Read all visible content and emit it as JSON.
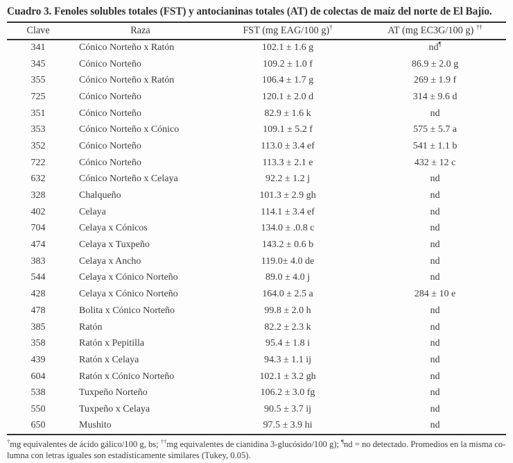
{
  "page": {
    "title": "Cuadro 3. Fenoles solubles totales (FST) y antocianinas totales (AT) de colectas de maíz del norte de El Bajío."
  },
  "table": {
    "columns": [
      {
        "label": "Clave",
        "sup": ""
      },
      {
        "label": "Raza",
        "sup": ""
      },
      {
        "label": "FST (mg EAG/100 g)",
        "sup": "†"
      },
      {
        "label": "AT (mg EC3G/100 g) ",
        "sup": "††"
      }
    ],
    "rows": [
      {
        "clave": "341",
        "raza": "Cónico Norteño x Ratón",
        "fst": "102.1 ± 1.6 g",
        "at": "nd",
        "at_sup": "¶"
      },
      {
        "clave": "345",
        "raza": "Cónico Norteño",
        "fst": "109.2 ± 1.0 f",
        "at": "86.9 ± 2.0 g",
        "at_sup": ""
      },
      {
        "clave": "355",
        "raza": "Cónico Norteño x Ratón",
        "fst": "106.4 ± 1.7 g",
        "at": "269 ± 1.9 f",
        "at_sup": ""
      },
      {
        "clave": "725",
        "raza": "Cónico Norteño",
        "fst": "120.1 ± 2.0 d",
        "at": "314 ± 9.6 d",
        "at_sup": ""
      },
      {
        "clave": "351",
        "raza": "Cónico Norteño",
        "fst": "82.9 ± 1.6 k",
        "at": "nd",
        "at_sup": ""
      },
      {
        "clave": "353",
        "raza": "Cónico Norteño x Cónico",
        "fst": "109.1 ± 5.2 f",
        "at": "575 ± 5.7 a",
        "at_sup": ""
      },
      {
        "clave": "352",
        "raza": "Cónico Norteño",
        "fst": "113.0 ± 3.4 ef",
        "at": "541 ± 1.1 b",
        "at_sup": ""
      },
      {
        "clave": "722",
        "raza": "Cónico Norteño",
        "fst": "113.3 ± 2.1 e",
        "at": "432 ± 12 c",
        "at_sup": ""
      },
      {
        "clave": "632",
        "raza": "Cónico Norteño x Celaya",
        "fst": "92.2 ± 1.2 j",
        "at": "nd",
        "at_sup": ""
      },
      {
        "clave": "328",
        "raza": "Chalqueño",
        "fst": "101.3 ± 2.9 gh",
        "at": "nd",
        "at_sup": ""
      },
      {
        "clave": "402",
        "raza": "Celaya",
        "fst": "114.1 ± 3.4 ef",
        "at": "nd",
        "at_sup": ""
      },
      {
        "clave": "704",
        "raza": "Celaya x Cónicos",
        "fst": "134.0 ± .0.8 c",
        "at": "nd",
        "at_sup": ""
      },
      {
        "clave": "474",
        "raza": "Celaya x Tuxpeño",
        "fst": "143.2 ± 0.6 b",
        "at": "nd",
        "at_sup": ""
      },
      {
        "clave": "383",
        "raza": "Celaya x Ancho",
        "fst": "119.0± 4.0 de",
        "at": "nd",
        "at_sup": ""
      },
      {
        "clave": "544",
        "raza": "Celaya x Cónico Norteño",
        "fst": "89.0 ± 4.0 j",
        "at": "nd",
        "at_sup": ""
      },
      {
        "clave": "428",
        "raza": "Celaya x Cónico Norteño",
        "fst": "164.0 ± 2.5 a",
        "at": "284 ± 10 e",
        "at_sup": ""
      },
      {
        "clave": "478",
        "raza": "Bolita x Cónico Norteño",
        "fst": "99.8 ± 2.0 h",
        "at": "nd",
        "at_sup": ""
      },
      {
        "clave": "385",
        "raza": "Ratón",
        "fst": "82.2 ± 2.3 k",
        "at": "nd",
        "at_sup": ""
      },
      {
        "clave": "358",
        "raza": "Ratón x Pepitilla",
        "fst": "95.4 ± 1.8 i",
        "at": "nd",
        "at_sup": ""
      },
      {
        "clave": "439",
        "raza": "Ratón x Celaya",
        "fst": "94.3 ± 1.1 ij",
        "at": "nd",
        "at_sup": ""
      },
      {
        "clave": "604",
        "raza": "Ratón x Cónico Norteño",
        "fst": "102.1 ± 3.2 gh",
        "at": "nd",
        "at_sup": ""
      },
      {
        "clave": "538",
        "raza": "Tuxpeño Norteño",
        "fst": "106.2 ± 3.0 fg",
        "at": "nd",
        "at_sup": ""
      },
      {
        "clave": "550",
        "raza": "Tuxpeño x Celaya",
        "fst": "90.5 ± 3.7 ij",
        "at": "nd",
        "at_sup": ""
      },
      {
        "clave": "650",
        "raza": "Mushito",
        "fst": "97.5 ± 3.9 hi",
        "at": "nd",
        "at_sup": ""
      }
    ]
  },
  "footnote": {
    "segments": [
      {
        "sup": "†",
        "text": "mg equivalentes de ácido gálico/100 g, bs; "
      },
      {
        "sup": "††",
        "text": "mg equivalentes de cianidina 3-glucósido/100 g); "
      },
      {
        "sup": "¶",
        "text": "nd = no detectado. Promedios en la misma co-"
      },
      {
        "br": true,
        "text": ""
      },
      {
        "sup": "",
        "text": "lumna con letras iguales son estadísticamente similares (Tukey, 0.05)."
      }
    ]
  },
  "colors": {
    "text": "#3a3a3a",
    "rule": "#2f2f2f",
    "background": "#fdfdfd"
  }
}
